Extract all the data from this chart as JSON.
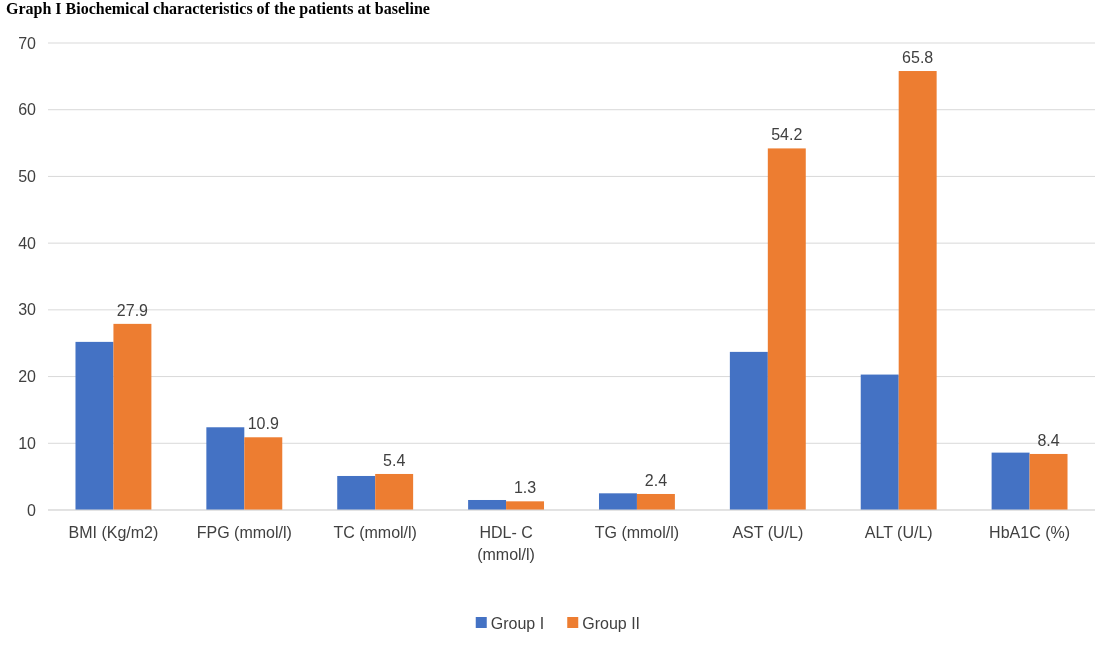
{
  "chart_data": {
    "type": "bar",
    "title": "Graph I Biochemical characteristics of the patients at baseline",
    "categories": [
      "BMI (Kg/m2)",
      "FPG (mmol/l)",
      "TC (mmol/l)",
      "HDL- C (mmol/l)",
      "TG (mmol/l)",
      "AST (U/L)",
      "ALT (U/L)",
      "HbA1C (%)"
    ],
    "series": [
      {
        "name": "Group I",
        "color": "#4472c4",
        "values": [
          25.2,
          12.4,
          5.1,
          1.5,
          2.5,
          23.7,
          20.3,
          8.6
        ]
      },
      {
        "name": "Group II",
        "color": "#ed7d31",
        "values": [
          27.9,
          10.9,
          5.4,
          1.3,
          2.4,
          54.2,
          65.8,
          8.4
        ],
        "value_labels": [
          "27.9",
          "10.9",
          "5.4",
          "1.3",
          "2.4",
          "54.2",
          "65.8",
          "8.4"
        ]
      }
    ],
    "ylim": [
      0,
      70
    ],
    "yticks": [
      0,
      10,
      20,
      30,
      40,
      50,
      60,
      70
    ],
    "grid": "y",
    "legend": "bottom"
  }
}
